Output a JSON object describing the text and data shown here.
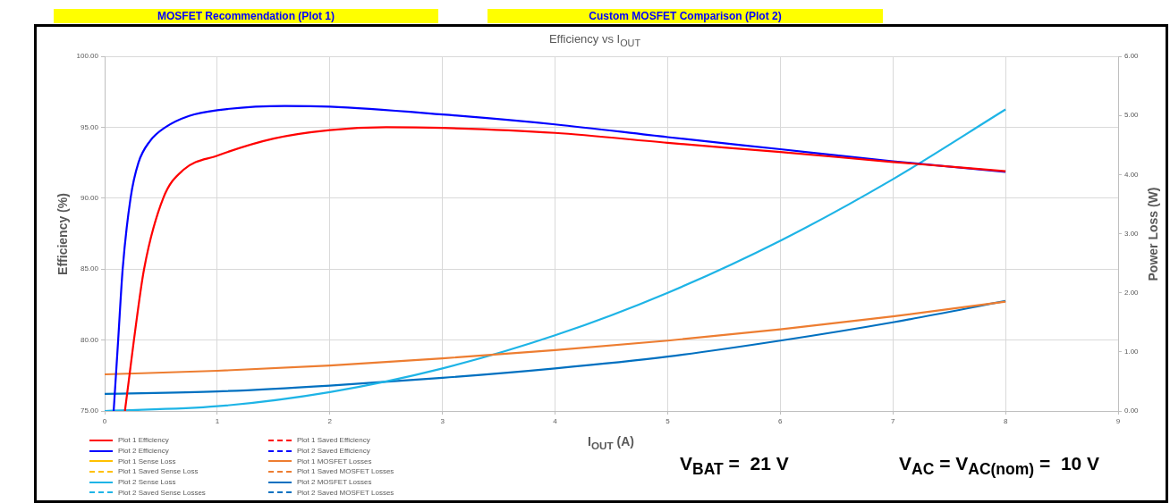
{
  "chart_data": {
    "type": "line",
    "title": "Efficiency vs I$_{OUT}$",
    "xlabel": "I$_{OUT}$ (A)",
    "ylabel": "Efficiency (%)",
    "y2label": "Power Loss (W)",
    "annotations": [
      "MOSFET Recommendation (Plot 1)",
      "Custom MOSFET Comparison (Plot 2)",
      "V$_{BAT}$ =  21 V",
      "V$_{AC}$ = V$_{AC(nom)}$ =  10 V"
    ],
    "xlim": [
      0,
      9
    ],
    "xticks": [
      0,
      1,
      2,
      3,
      4,
      5,
      6,
      7,
      8,
      9
    ],
    "ylim": [
      75,
      100
    ],
    "yticks": [
      {
        "value": 75,
        "label": "75.00"
      },
      {
        "value": 80,
        "label": "80.00"
      },
      {
        "value": 85,
        "label": "85.00"
      },
      {
        "value": 90,
        "label": "90.00"
      },
      {
        "value": 95,
        "label": "95.00"
      },
      {
        "value": 100,
        "label": "100.00"
      }
    ],
    "y2lim": [
      0,
      6
    ],
    "y2ticks": [
      {
        "value": 0,
        "label": "0.00"
      },
      {
        "value": 1,
        "label": "1.00"
      },
      {
        "value": 2,
        "label": "2.00"
      },
      {
        "value": 3,
        "label": "3.00"
      },
      {
        "value": 4,
        "label": "4.00"
      },
      {
        "value": 5,
        "label": "5.00"
      },
      {
        "value": 6,
        "label": "6.00"
      }
    ],
    "grid": true,
    "legend": "bottom left",
    "series": [
      {
        "name": "Plot 1 Efficiency",
        "color": "#ff0000",
        "line_style": "solid",
        "x": [
          0.18,
          0.22,
          0.26,
          0.35,
          0.52,
          0.7,
          1,
          1.5,
          2,
          2.5,
          3,
          4,
          5,
          6,
          7,
          8
        ],
        "values": [
          75,
          77.5,
          80,
          85,
          90,
          92.0,
          93.0,
          94.2,
          94.8,
          95.0,
          94.95,
          94.6,
          93.9,
          93.25,
          92.55,
          91.9
        ]
      },
      {
        "name": "Plot 1 Saved Efficiency",
        "color": "#ff0000",
        "line_style": "dashed"
      },
      {
        "name": "Plot 2 Efficiency",
        "color": "#0000ff",
        "line_style": "solid",
        "x": [
          0.08,
          0.12,
          0.16,
          0.23,
          0.3,
          0.4,
          0.54,
          0.75,
          1,
          1.6,
          2,
          3,
          4,
          5,
          6,
          7,
          8
        ],
        "values": [
          75,
          80,
          85,
          90,
          92.5,
          94,
          95,
          95.8,
          96.2,
          96.5,
          96.45,
          95.9,
          95.2,
          94.3,
          93.45,
          92.6,
          91.85
        ]
      },
      {
        "name": "Plot 2 Saved Efficiency",
        "color": "#0000ff",
        "line_style": "dashed"
      },
      {
        "name": "Plot 1 Sense Loss",
        "color": "#ffc000",
        "line_style": "solid",
        "axis": "y2"
      },
      {
        "name": "Plot 1 MOSFET Losses",
        "color": "#ed7d31",
        "line_style": "solid",
        "axis": "y2",
        "x": [
          0,
          1,
          2,
          3,
          4,
          5,
          6,
          7,
          8
        ],
        "values": [
          0.62,
          0.68,
          0.77,
          0.89,
          1.03,
          1.19,
          1.38,
          1.6,
          1.85
        ]
      },
      {
        "name": "Plot 1 Saved Sense Loss",
        "color": "#ffc000",
        "line_style": "dashed",
        "axis": "y2"
      },
      {
        "name": "Plot 1 Saved MOSFET Losses",
        "color": "#ed7d31",
        "line_style": "dashed",
        "axis": "y2"
      },
      {
        "name": "Plot 2 Sense Loss",
        "color": "#1eb4e6",
        "line_style": "solid",
        "axis": "y2",
        "x": [
          0,
          1,
          2,
          3,
          4,
          5,
          6,
          7,
          8
        ],
        "values": [
          0,
          0.08,
          0.32,
          0.72,
          1.28,
          2.0,
          2.88,
          3.92,
          5.1
        ]
      },
      {
        "name": "Plot 2 MOSFET Losses",
        "color": "#0070c0",
        "line_style": "solid",
        "axis": "y2",
        "x": [
          0,
          1,
          2,
          3,
          4,
          5,
          6,
          7,
          8
        ],
        "values": [
          0.29,
          0.33,
          0.43,
          0.56,
          0.72,
          0.92,
          1.19,
          1.5,
          1.86
        ]
      },
      {
        "name": "Plot 2 Saved Sense Losses",
        "color": "#1eb4e6",
        "line_style": "dashed",
        "axis": "y2"
      },
      {
        "name": "Plot 2 Saved MOSFET Losses",
        "color": "#0070c0",
        "line_style": "dashed",
        "axis": "y2"
      }
    ]
  }
}
